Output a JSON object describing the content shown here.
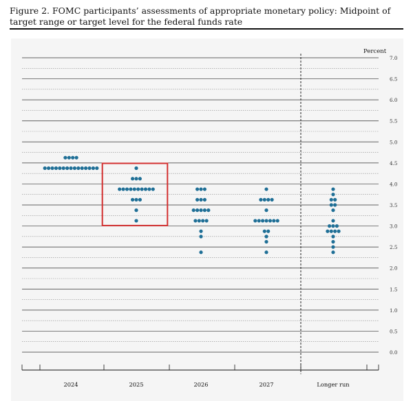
{
  "figure": {
    "caption": "Figure 2.  FOMC participants’ assessments of appropriate monetary policy:  Midpoint of target range or target level for the federal funds rate"
  },
  "chart_data": {
    "type": "scatter",
    "subtype": "dot-plot",
    "unit_label": "Percent",
    "categories": [
      "2024",
      "2025",
      "2026",
      "2027",
      "Longer run"
    ],
    "ylim": [
      0.0,
      7.0
    ],
    "y_ticks": [
      "0.0",
      "0.5",
      "1.0",
      "1.5",
      "2.0",
      "2.5",
      "3.0",
      "3.5",
      "4.0",
      "4.5",
      "5.0",
      "5.5",
      "6.0",
      "6.5",
      "7.0"
    ],
    "grid": true,
    "separator_before_category": "Longer run",
    "dot_color": "#1f6f96",
    "highlight": {
      "category": "2025",
      "color": "#d32f2f"
    },
    "dots": [
      {
        "category": "2024",
        "values": [
          {
            "y": 4.625,
            "count": 4
          },
          {
            "y": 4.375,
            "count": 15
          }
        ]
      },
      {
        "category": "2025",
        "values": [
          {
            "y": 4.375,
            "count": 1
          },
          {
            "y": 4.125,
            "count": 3
          },
          {
            "y": 3.875,
            "count": 10
          },
          {
            "y": 3.625,
            "count": 3
          },
          {
            "y": 3.375,
            "count": 1
          },
          {
            "y": 3.125,
            "count": 1
          }
        ]
      },
      {
        "category": "2026",
        "values": [
          {
            "y": 3.875,
            "count": 3
          },
          {
            "y": 3.625,
            "count": 3
          },
          {
            "y": 3.375,
            "count": 5
          },
          {
            "y": 3.125,
            "count": 4
          },
          {
            "y": 2.875,
            "count": 1
          },
          {
            "y": 2.75,
            "count": 1
          },
          {
            "y": 2.375,
            "count": 1
          }
        ]
      },
      {
        "category": "2027",
        "values": [
          {
            "y": 3.875,
            "count": 1
          },
          {
            "y": 3.625,
            "count": 4
          },
          {
            "y": 3.375,
            "count": 1
          },
          {
            "y": 3.125,
            "count": 7
          },
          {
            "y": 2.875,
            "count": 2
          },
          {
            "y": 2.75,
            "count": 1
          },
          {
            "y": 2.625,
            "count": 1
          },
          {
            "y": 2.375,
            "count": 1
          }
        ]
      },
      {
        "category": "Longer run",
        "values": [
          {
            "y": 3.875,
            "count": 1
          },
          {
            "y": 3.75,
            "count": 1
          },
          {
            "y": 3.625,
            "count": 2
          },
          {
            "y": 3.5,
            "count": 2
          },
          {
            "y": 3.375,
            "count": 1
          },
          {
            "y": 3.125,
            "count": 1
          },
          {
            "y": 3.0,
            "count": 3
          },
          {
            "y": 2.875,
            "count": 4
          },
          {
            "y": 2.75,
            "count": 1
          },
          {
            "y": 2.625,
            "count": 1
          },
          {
            "y": 2.5,
            "count": 1
          },
          {
            "y": 2.375,
            "count": 1
          }
        ]
      }
    ]
  }
}
